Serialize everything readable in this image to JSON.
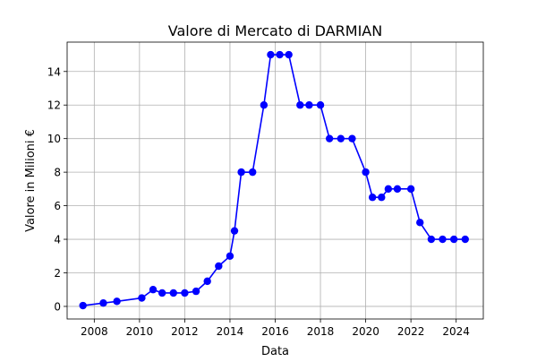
{
  "chart_data": {
    "type": "line",
    "title": "Valore di Mercato di DARMIAN",
    "xlabel": "Data",
    "ylabel": "Valore in Milioni €",
    "xlim": [
      2006.8,
      2025.2
    ],
    "ylim": [
      -0.75,
      15.75
    ],
    "xticks": [
      2008,
      2010,
      2012,
      2014,
      2016,
      2018,
      2020,
      2022,
      2024
    ],
    "yticks": [
      0,
      2,
      4,
      6,
      8,
      10,
      12,
      14
    ],
    "grid": true,
    "line_color": "#0000ff",
    "series": [
      {
        "x": [
          2007.5,
          2008.4,
          2009.0,
          2010.1,
          2010.6,
          2011.0,
          2011.5,
          2012.0,
          2012.5,
          2013.0,
          2013.5,
          2014.0,
          2014.2,
          2014.5,
          2015.0,
          2015.5,
          2015.8,
          2016.2,
          2016.6,
          2017.1,
          2017.5,
          2018.0,
          2018.4,
          2018.9,
          2019.4,
          2020.0,
          2020.3,
          2020.7,
          2021.0,
          2021.4,
          2022.0,
          2022.4,
          2022.9,
          2023.4,
          2023.9,
          2024.4
        ],
        "y": [
          0.05,
          0.2,
          0.3,
          0.5,
          1.0,
          0.8,
          0.8,
          0.8,
          0.9,
          1.5,
          2.4,
          3.0,
          4.5,
          8.0,
          8.0,
          12.0,
          15.0,
          15.0,
          15.0,
          12.0,
          12.0,
          12.0,
          10.0,
          10.0,
          10.0,
          8.0,
          6.5,
          6.5,
          7.0,
          7.0,
          7.0,
          5.0,
          4.0,
          4.0,
          4.0,
          4.0
        ]
      }
    ]
  }
}
